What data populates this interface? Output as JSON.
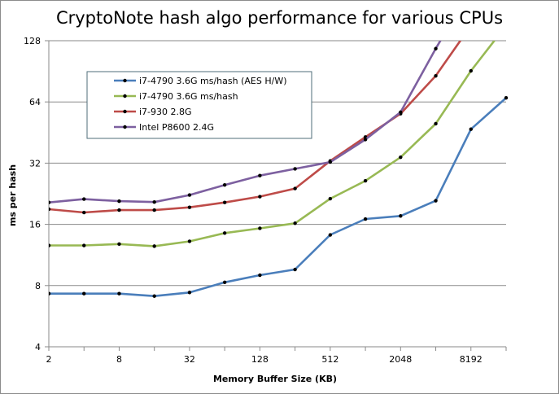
{
  "chart_data": {
    "type": "line",
    "title": "CryptoNote hash algo performance for various CPUs",
    "xlabel": "Memory Buffer Size (KB)",
    "ylabel": "ms per hash",
    "x_scale": "log2",
    "y_scale": "log2",
    "x_ticks": [
      "2",
      "8",
      "32",
      "128",
      "512",
      "2048",
      "8192"
    ],
    "y_ticks": [
      "4",
      "8",
      "16",
      "32",
      "64",
      "128"
    ],
    "xlim": [
      2,
      16384
    ],
    "ylim": [
      4,
      128
    ],
    "grid": "horizontal major gridlines",
    "legend_position": "upper-left inside plot",
    "x": [
      2,
      4,
      8,
      16,
      32,
      64,
      128,
      256,
      512,
      1024,
      2048,
      4096,
      8192,
      16384
    ],
    "series": [
      {
        "name": "i7-4790 3.6G ms/hash (AES H/W)",
        "color": "#4a7ebb",
        "values": [
          7.3,
          7.3,
          7.3,
          7.1,
          7.4,
          8.3,
          9.0,
          9.6,
          14.2,
          17.0,
          17.6,
          20.9,
          47,
          67
        ]
      },
      {
        "name": "i7-4790 3.6G ms/hash",
        "color": "#98b954",
        "values": [
          12.6,
          12.6,
          12.8,
          12.5,
          13.2,
          14.5,
          15.3,
          16.2,
          21.4,
          26.2,
          34.2,
          50,
          91,
          152
        ]
      },
      {
        "name": "i7-930 2.8G",
        "color": "#be4b48",
        "values": [
          19.0,
          18.3,
          18.8,
          18.8,
          19.4,
          20.5,
          21.9,
          24.0,
          32.8,
          43.0,
          56.0,
          86,
          152,
          null
        ]
      },
      {
        "name": "Intel P8600 2.4G",
        "color": "#7d60a0",
        "values": [
          20.5,
          21.3,
          20.8,
          20.6,
          22.3,
          25.0,
          27.8,
          30.0,
          32.4,
          41.8,
          57.0,
          117,
          230,
          null
        ]
      }
    ]
  }
}
